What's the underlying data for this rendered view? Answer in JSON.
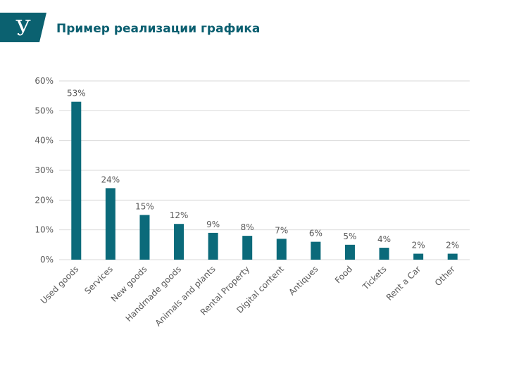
{
  "page": {
    "title": "Пример реализации графика",
    "logo_letter": "У"
  },
  "colors": {
    "brand": "#0b6170",
    "bar": "#0b6a7a",
    "grid": "#d9d9d9",
    "axis_text": "#595959"
  },
  "chart_data": {
    "type": "bar",
    "categories": [
      "Used goods",
      "Services",
      "New goods",
      "Handmade goods",
      "Animals and plants",
      "Rental Property",
      "Digital content",
      "Antiques",
      "Food",
      "Tickets",
      "Rent a Car",
      "Other"
    ],
    "values": [
      53,
      24,
      15,
      12,
      9,
      8,
      7,
      6,
      5,
      4,
      2,
      2
    ],
    "value_labels": [
      "53%",
      "24%",
      "15%",
      "12%",
      "9%",
      "8%",
      "7%",
      "6%",
      "5%",
      "4%",
      "2%",
      "2%"
    ],
    "title": "",
    "xlabel": "",
    "ylabel": "",
    "ylim": [
      0,
      60
    ],
    "yticks": [
      0,
      10,
      20,
      30,
      40,
      50,
      60
    ],
    "ytick_labels": [
      "0%",
      "10%",
      "20%",
      "30%",
      "40%",
      "50%",
      "60%"
    ],
    "grid": true,
    "legend": "none"
  }
}
